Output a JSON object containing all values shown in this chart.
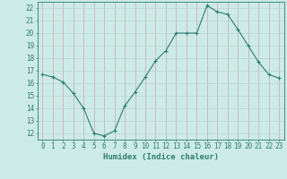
{
  "x": [
    0,
    1,
    2,
    3,
    4,
    5,
    6,
    7,
    8,
    9,
    10,
    11,
    12,
    13,
    14,
    15,
    16,
    17,
    18,
    19,
    20,
    21,
    22,
    23
  ],
  "y": [
    16.7,
    16.5,
    16.1,
    15.2,
    14.0,
    12.0,
    11.8,
    12.2,
    14.2,
    15.3,
    16.5,
    17.8,
    18.6,
    20.0,
    20.0,
    20.0,
    22.2,
    21.7,
    21.5,
    20.3,
    19.0,
    17.7,
    16.7,
    16.4
  ],
  "line_color": "#2d7d6e",
  "marker": "P",
  "marker_size": 2.5,
  "bg_color": "#cceae7",
  "grid_v_color": "#c8a8a8",
  "grid_h_color": "#b8d4d0",
  "xlabel": "Humidex (Indice chaleur)",
  "xlim": [
    -0.5,
    23.5
  ],
  "ylim": [
    11.5,
    22.5
  ],
  "yticks": [
    12,
    13,
    14,
    15,
    16,
    17,
    18,
    19,
    20,
    21,
    22
  ],
  "xticks": [
    0,
    1,
    2,
    3,
    4,
    5,
    6,
    7,
    8,
    9,
    10,
    11,
    12,
    13,
    14,
    15,
    16,
    17,
    18,
    19,
    20,
    21,
    22,
    23
  ],
  "tick_color": "#2d7d6e",
  "label_color": "#2d7d6e",
  "xlabel_fontsize": 6.5,
  "tick_fontsize": 5.5
}
